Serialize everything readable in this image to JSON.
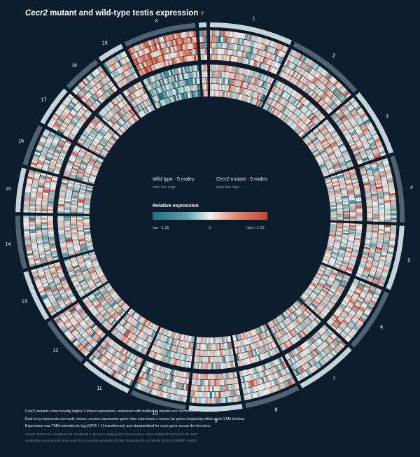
{
  "title_gene": "Cecr2",
  "title_rest": " mutant and wild-type testis expression",
  "chart_data": {
    "type": "heatmap",
    "layout": "circular",
    "chromosomes": [
      "1",
      "2",
      "3",
      "4",
      "5",
      "6",
      "7",
      "8",
      "9",
      "10",
      "11",
      "12",
      "13",
      "14",
      "15",
      "16",
      "17",
      "18",
      "19",
      "X",
      "Y"
    ],
    "groups": [
      {
        "name": "Wild type · 5 males",
        "sublabel": "inner five rings"
      },
      {
        "name_gene": "Cecr2",
        "name_rest": " mutant · 5 males",
        "sublabel": "outer five rings"
      }
    ],
    "rings_per_group": 5,
    "legend": {
      "title": "Relative expression",
      "low_label": "low  −1.25",
      "mid_label": "0",
      "high_label": "high  +1.25",
      "range": [
        -1.25,
        1.25
      ]
    },
    "colors": {
      "low": "#1f6f7c",
      "mid": "#f2f2f0",
      "high": "#c8452a",
      "background": "#0b1c2c",
      "ideogram_dark": "#4f6272",
      "ideogram_light": "#c6d3dc"
    }
  },
  "footer": {
    "line1": "Cecr2 mutants show broadly higher X-linked expression, consistent with ineffective meiotic sex chromosome inactivation.",
    "line2": "Each ring represents one male mouse; sectors summarize gene-wise expression z-scores for genes beginning within each 1 Mb window.",
    "line3": "Expression was TMM-normalized, log₂(CPM + 1)-transformed, and standardized for each gene across the ten mice.",
    "line4": "Source: Norton KA, Humphreys R, Weatherill C, Duong K, Nguyen CV, Kornacsekh A, Nin F, Bullock P, McDermid HE. 2022.",
    "line5": "Subfertility in young male mice mutant for chromatin remodeler CECR2. Reproduction 163:85-95. doi:10.1530/REP-19-0507"
  }
}
